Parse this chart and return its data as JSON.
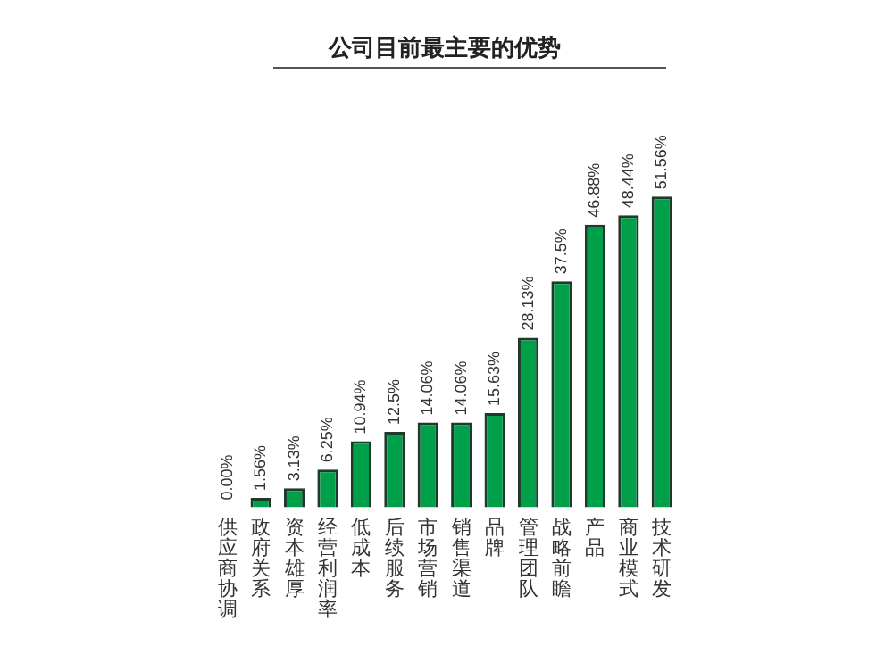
{
  "chart_data": {
    "type": "bar",
    "title": "公司目前最主要的优势",
    "categories": [
      "供应商协调",
      "政府关系",
      "资本雄厚",
      "经营利润率",
      "低成本",
      "后续服务",
      "市场营销",
      "销售渠道",
      "品牌",
      "管理团队",
      "战略前瞻",
      "产品",
      "商业模式",
      "技术研发"
    ],
    "values": [
      0,
      1.56,
      3.13,
      6.25,
      10.94,
      12.5,
      14.06,
      14.06,
      15.63,
      28.13,
      37.5,
      46.88,
      48.44,
      51.56
    ],
    "value_labels": [
      "0.00%",
      "1.56%",
      "3.13%",
      "6.25%",
      "10.94%",
      "12.5%",
      "14.06%",
      "14.06%",
      "15.63%",
      "28.13%",
      "37.5%",
      "46.88%",
      "48.44%",
      "51.56%"
    ],
    "color": "#00a04a",
    "grid": false,
    "legend": false
  }
}
